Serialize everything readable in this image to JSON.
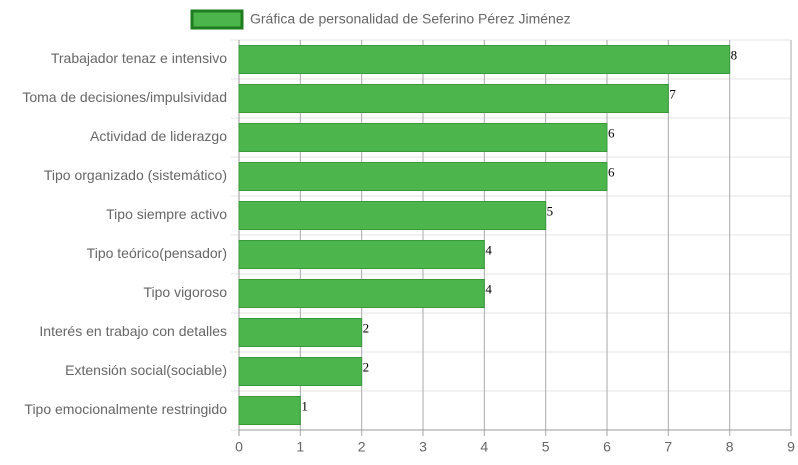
{
  "chart_data": {
    "type": "bar",
    "orientation": "horizontal",
    "categories": [
      "Trabajador tenaz e intensivo",
      "Toma de decisiones/impulsividad",
      "Actividad de liderazgo",
      "Tipo organizado (sistemático)",
      "Tipo siempre activo",
      "Tipo teórico(pensador)",
      "Tipo vigoroso",
      "Interés en trabajo con detalles",
      "Extensión social(sociable)",
      "Tipo emocionalmente restringido"
    ],
    "series": [
      {
        "name": "Gráfica de personalidad de Seferino Pérez Jiménez",
        "color": "#4cb54c",
        "values": [
          8,
          7,
          6,
          6,
          5,
          4,
          4,
          2,
          2,
          1
        ]
      }
    ],
    "xlim": [
      0,
      9
    ],
    "xticks": [
      0,
      1,
      2,
      3,
      4,
      5,
      6,
      7,
      8,
      9
    ],
    "grid": true,
    "legend": "top"
  }
}
